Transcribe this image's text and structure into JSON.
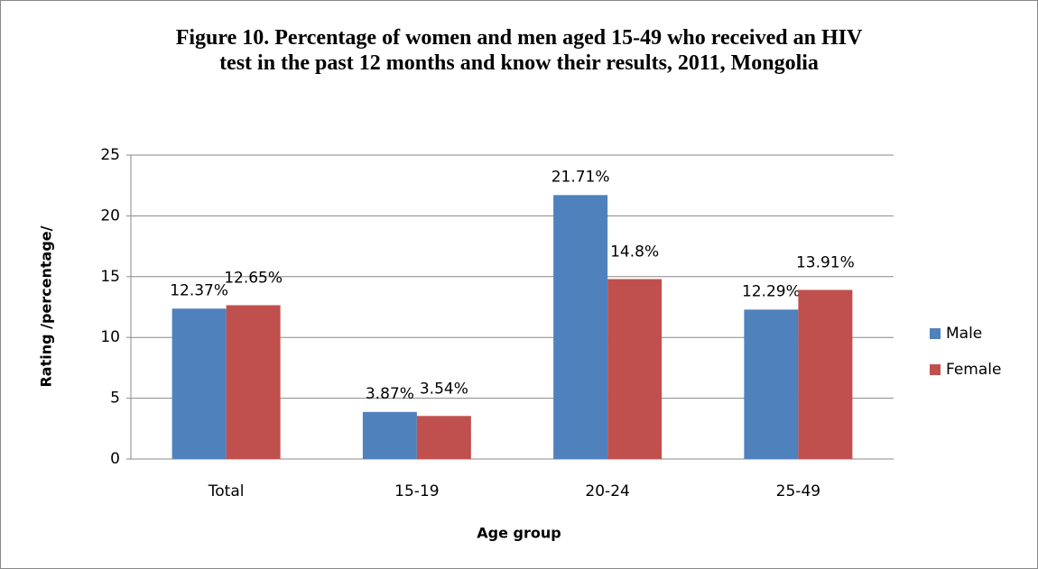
{
  "chart_data": {
    "type": "bar",
    "title": "Figure 10. Percentage of women and men aged 15-49 who received an HIV test in the past 12 months and know their results, 2011, Mongolia",
    "x_label": "Age group",
    "y_label": "Rating /percentage/",
    "categories": [
      "Total",
      "15-19",
      "20-24",
      "25-49"
    ],
    "series": [
      {
        "name": "Male",
        "color": "#4f81bd",
        "values": [
          12.37,
          3.87,
          21.71,
          12.29
        ],
        "value_labels": [
          "12.37%",
          "3.87%",
          "21.71%",
          "12.29%"
        ]
      },
      {
        "name": "Female",
        "color": "#c0504d",
        "values": [
          12.65,
          3.54,
          14.8,
          13.91
        ],
        "value_labels": [
          "12.65%",
          "3.54%",
          "14.8%",
          "13.91%"
        ]
      }
    ],
    "ylim": [
      0,
      25
    ],
    "yticks": [
      0,
      5,
      10,
      15,
      20,
      25
    ],
    "grid": true,
    "legend": "right"
  }
}
